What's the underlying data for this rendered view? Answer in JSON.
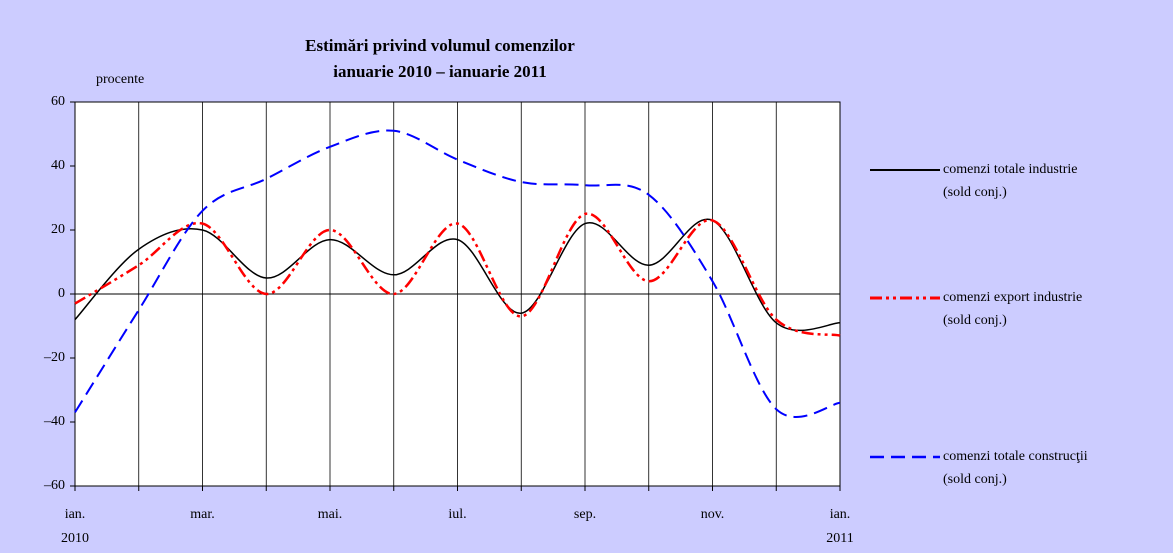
{
  "chart_data": {
    "type": "line",
    "title": [
      "Estimări privind volumul comenzilor",
      "ianuarie 2010 – ianuarie 2011"
    ],
    "ylabel": "procente",
    "categories": [
      "ian.",
      null,
      "mar.",
      null,
      "mai.",
      null,
      "iul.",
      null,
      "sep.",
      null,
      "nov.",
      null,
      "ian."
    ],
    "years": [
      "2010",
      "2011"
    ],
    "ylim": [
      -60,
      60
    ],
    "yticks": [
      {
        "value": -60,
        "label": "–60"
      },
      {
        "value": -40,
        "label": "–40"
      },
      {
        "value": -20,
        "label": "–20"
      },
      0,
      20,
      40,
      60
    ],
    "grid": true,
    "legend": "right",
    "series": [
      {
        "name": "comenzi totale industrie",
        "note": "(sold conj.)",
        "color": "#000000",
        "dash": "solid",
        "values": [
          -8,
          14,
          20,
          5,
          17,
          6,
          17,
          -6,
          22,
          9,
          23,
          -9,
          -9
        ]
      },
      {
        "name": "comenzi export industrie",
        "note": "(sold conj.)",
        "color": "#ff0000",
        "dash": "dash-dot-dot",
        "values": [
          -3,
          9,
          22,
          0,
          20,
          0,
          22,
          -7,
          25,
          4,
          23,
          -8,
          -13
        ]
      },
      {
        "name": "comenzi totale construcţii",
        "note": "(sold conj.)",
        "color": "#0000ff",
        "dash": "dashed",
        "values": [
          -37,
          -5,
          26,
          36,
          46,
          51,
          42,
          35,
          34,
          31,
          4,
          -36,
          -34
        ]
      }
    ]
  }
}
